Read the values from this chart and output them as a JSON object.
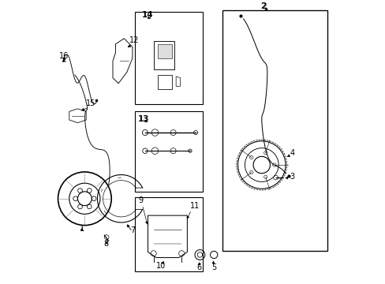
{
  "bg_color": "#ffffff",
  "line_color": "#000000",
  "lw": 0.8
}
